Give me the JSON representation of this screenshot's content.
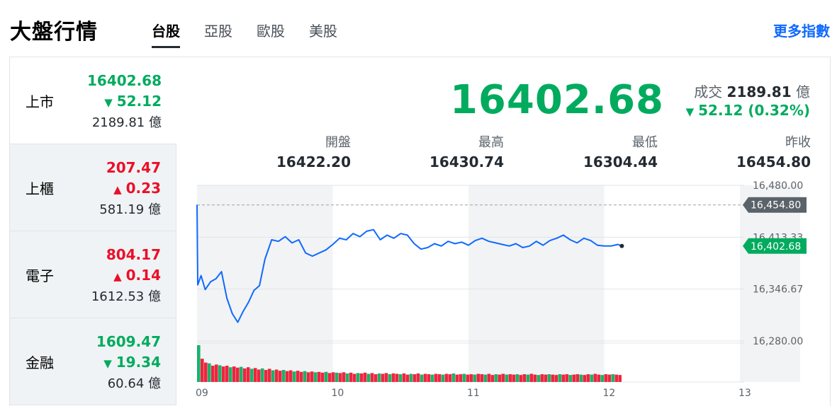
{
  "header": {
    "title": "大盤行情",
    "tabs": [
      {
        "label": "台股",
        "active": true
      },
      {
        "label": "亞股",
        "active": false
      },
      {
        "label": "歐股",
        "active": false
      },
      {
        "label": "美股",
        "active": false
      }
    ],
    "more_link": "更多指數"
  },
  "sidebar": {
    "items": [
      {
        "name": "上市",
        "price": "16402.68",
        "change": "52.12",
        "direction": "down",
        "volume": "2189.81",
        "unit": "億"
      },
      {
        "name": "上櫃",
        "price": "207.47",
        "change": "0.23",
        "direction": "up",
        "volume": "581.19",
        "unit": "億"
      },
      {
        "name": "電子",
        "price": "804.17",
        "change": "0.14",
        "direction": "up",
        "volume": "1612.53",
        "unit": "億"
      },
      {
        "name": "金融",
        "price": "1609.47",
        "change": "19.34",
        "direction": "down",
        "volume": "60.64",
        "unit": "億"
      }
    ]
  },
  "quote": {
    "price": "16402.68",
    "volume_label": "成交",
    "volume_value": "2189.81",
    "volume_unit": "億",
    "change": "52.12 (0.32%)",
    "direction": "down",
    "stats": [
      {
        "label": "開盤",
        "value": "16422.20"
      },
      {
        "label": "最高",
        "value": "16430.74"
      },
      {
        "label": "最低",
        "value": "16304.44"
      },
      {
        "label": "昨收",
        "value": "16454.80"
      }
    ]
  },
  "colors": {
    "up": "#eb0f29",
    "down": "#00ab5e",
    "line": "#0f69ff",
    "accent": "#0f69ff",
    "prev_close_tag": "#5b636a"
  },
  "icons": {
    "up": "triangle-up-icon",
    "down": "triangle-down-icon"
  },
  "chart_data": {
    "type": "line",
    "x_ticks": [
      "09",
      "10",
      "11",
      "12",
      "13"
    ],
    "y_ticks": [
      "16,480.00",
      "16,413.33",
      "16,346.67",
      "16,280.00"
    ],
    "ylim": [
      16280,
      16480
    ],
    "xlim": [
      9,
      13
    ],
    "prev_close": 16454.8,
    "prev_close_label": "16,454.80",
    "last_price_label": "16,402.68",
    "grid": true,
    "series": [
      {
        "type": "line",
        "x": [
          9.0,
          9.005,
          9.03,
          9.06,
          9.1,
          9.14,
          9.18,
          9.22,
          9.26,
          9.3,
          9.34,
          9.38,
          9.42,
          9.46,
          9.5,
          9.55,
          9.6,
          9.65,
          9.7,
          9.75,
          9.8,
          9.85,
          9.9,
          9.95,
          10.0,
          10.05,
          10.1,
          10.15,
          10.2,
          10.25,
          10.3,
          10.35,
          10.4,
          10.45,
          10.5,
          10.55,
          10.6,
          10.65,
          10.7,
          10.75,
          10.8,
          10.85,
          10.9,
          10.95,
          11.0,
          11.05,
          11.1,
          11.15,
          11.2,
          11.25,
          11.3,
          11.35,
          11.4,
          11.45,
          11.5,
          11.55,
          11.6,
          11.65,
          11.7,
          11.75,
          11.8,
          11.85,
          11.9,
          11.95,
          12.0,
          12.05,
          12.1,
          12.13
        ],
        "y": [
          16455,
          16352,
          16364,
          16346,
          16356,
          16360,
          16369,
          16335,
          16315,
          16304,
          16318,
          16330,
          16345,
          16351,
          16385,
          16410,
          16408,
          16414,
          16406,
          16410,
          16393,
          16389,
          16393,
          16397,
          16404,
          16412,
          16410,
          16418,
          16414,
          16421,
          16423,
          16410,
          16416,
          16412,
          16418,
          16416,
          16405,
          16398,
          16400,
          16405,
          16402,
          16408,
          16405,
          16407,
          16403,
          16409,
          16412,
          16408,
          16406,
          16404,
          16402,
          16405,
          16400,
          16402,
          16408,
          16403,
          16409,
          16412,
          16416,
          16410,
          16406,
          16412,
          16409,
          16403,
          16402,
          16402,
          16404,
          16402
        ]
      },
      {
        "type": "bar",
        "name": "volume",
        "values": [
          9.5,
          6,
          5,
          4.8,
          4.2,
          4.5,
          4.3,
          4,
          4.2,
          3.8,
          4,
          3.7,
          3.9,
          3.5,
          3.8,
          3.4,
          3.6,
          3.2,
          3.5,
          3.1,
          3.4,
          3,
          3.2,
          2.9,
          3.1,
          2.8,
          3,
          2.7,
          2.9,
          2.6,
          2.8,
          2.5,
          2.7,
          2.5,
          2.6,
          2.4,
          2.6,
          2.3,
          2.5,
          2.4,
          2.3,
          2.5,
          2.2,
          2.4,
          2.1,
          2.3,
          2.2,
          2.4,
          2.1,
          2.3,
          2,
          2.2,
          2.1,
          2.3,
          2,
          2.2,
          2.1,
          2,
          2.2,
          1.9,
          2.1,
          2,
          2.2,
          1.9,
          2.1,
          2,
          1.9,
          2.1,
          2,
          1.9,
          2.1,
          2,
          2.2,
          1.9,
          2,
          2.1,
          1.9,
          2,
          1.9,
          2.1,
          2,
          1.9,
          2.1,
          1.8,
          2,
          1.9,
          2.1,
          1.9,
          2,
          1.9,
          2,
          1.8,
          2,
          1.9,
          2.1,
          1.9,
          1.8,
          2,
          1.9,
          2,
          1.9,
          1.8,
          2,
          1.9,
          2,
          1.8,
          1.9,
          2,
          1.9,
          1.8,
          2,
          1.9,
          2.1,
          1.9,
          1.8,
          2,
          1.9,
          2,
          1.9,
          1.8
        ]
      }
    ]
  }
}
